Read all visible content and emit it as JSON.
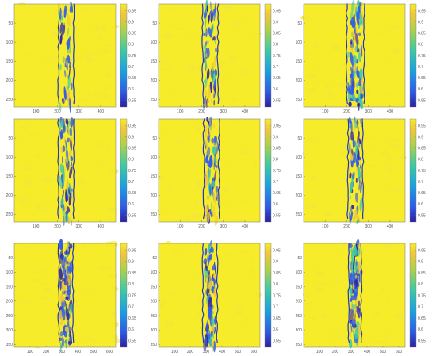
{
  "colors": {
    "field": "#f6ec2a",
    "field_alt": "#f1e73a",
    "band_hot": "#f0c63c",
    "band_mid": "#3fc9a4",
    "band_low": "#2e5ce8",
    "band_deep": "#2b1fa0",
    "edge": "#2037c4",
    "axis": "#777777"
  },
  "colorbar": {
    "ticks": [
      "0.95",
      "0.9",
      "0.85",
      "0.8",
      "0.75",
      "0.7",
      "0.65",
      "0.6",
      "0.55"
    ],
    "values": [
      0.95,
      0.9,
      0.85,
      0.8,
      0.75,
      0.7,
      0.65,
      0.6,
      0.55
    ],
    "range": [
      0.52,
      0.98
    ]
  },
  "chart_data": [
    {
      "type": "heatmap",
      "panel": "r1c1",
      "xlim": [
        0,
        470
      ],
      "ylim": [
        0,
        270
      ],
      "xticks": [
        "100",
        "200",
        "300",
        "400"
      ],
      "xtick_values": [
        100,
        200,
        300,
        400
      ],
      "yticks": [
        "50",
        "100",
        "150",
        "200",
        "250"
      ],
      "ytick_values": [
        50,
        100,
        150,
        200,
        250
      ],
      "band": [
        205,
        275
      ],
      "noise": 0.25
    },
    {
      "type": "heatmap",
      "panel": "r1c2",
      "xlim": [
        0,
        470
      ],
      "ylim": [
        0,
        270
      ],
      "xticks": [
        "100",
        "200",
        "300",
        "400"
      ],
      "xtick_values": [
        100,
        200,
        300,
        400
      ],
      "yticks": [
        "50",
        "100",
        "150",
        "200",
        "250"
      ],
      "ytick_values": [
        50,
        100,
        150,
        200,
        250
      ],
      "band": [
        205,
        275
      ],
      "noise": 0.45
    },
    {
      "type": "heatmap",
      "panel": "r1c3",
      "xlim": [
        0,
        470
      ],
      "ylim": [
        0,
        270
      ],
      "xticks": [
        "100",
        "200",
        "300",
        "400"
      ],
      "xtick_values": [
        100,
        200,
        300,
        400
      ],
      "yticks": [
        "50",
        "100",
        "150",
        "200",
        "250"
      ],
      "ytick_values": [
        50,
        100,
        150,
        200,
        250
      ],
      "band": [
        200,
        280
      ],
      "noise": 0.75
    },
    {
      "type": "heatmap",
      "panel": "r2c1",
      "xlim": [
        0,
        470
      ],
      "ylim": [
        0,
        270
      ],
      "xticks": [
        "100",
        "200",
        "300",
        "400"
      ],
      "xtick_values": [
        100,
        200,
        300,
        400
      ],
      "yticks": [
        "50",
        "100",
        "150",
        "200",
        "250"
      ],
      "ytick_values": [
        50,
        100,
        150,
        200,
        250
      ],
      "band": [
        205,
        275
      ],
      "noise": 0.5
    },
    {
      "type": "heatmap",
      "panel": "r2c2",
      "xlim": [
        0,
        470
      ],
      "ylim": [
        0,
        270
      ],
      "xticks": [
        "100",
        "200",
        "300",
        "400"
      ],
      "xtick_values": [
        100,
        200,
        300,
        400
      ],
      "yticks": [
        "50",
        "100",
        "150",
        "200",
        "250"
      ],
      "ytick_values": [
        50,
        100,
        150,
        200,
        250
      ],
      "band": [
        210,
        280
      ],
      "noise": 0.55
    },
    {
      "type": "heatmap",
      "panel": "r2c3",
      "xlim": [
        0,
        470
      ],
      "ylim": [
        0,
        270
      ],
      "xticks": [
        "100",
        "200",
        "300",
        "400"
      ],
      "xtick_values": [
        100,
        200,
        300,
        400
      ],
      "yticks": [
        "50",
        "100",
        "150",
        "200",
        "250"
      ],
      "ytick_values": [
        50,
        100,
        150,
        200,
        250
      ],
      "band": [
        205,
        275
      ],
      "noise": 0.4
    },
    {
      "type": "heatmap",
      "panel": "r3c1",
      "xlim": [
        0,
        640
      ],
      "ylim": [
        0,
        360
      ],
      "xticks": [
        "100",
        "200",
        "300",
        "400",
        "500",
        "600"
      ],
      "xtick_values": [
        100,
        200,
        300,
        400,
        500,
        600
      ],
      "yticks": [
        "50",
        "100",
        "150",
        "200",
        "250",
        "300",
        "350"
      ],
      "ytick_values": [
        50,
        100,
        150,
        200,
        250,
        300,
        350
      ],
      "band": [
        280,
        370
      ],
      "noise": 0.85
    },
    {
      "type": "heatmap",
      "panel": "r3c2",
      "xlim": [
        0,
        640
      ],
      "ylim": [
        0,
        360
      ],
      "xticks": [
        "100",
        "200",
        "300",
        "400",
        "500",
        "600"
      ],
      "xtick_values": [
        100,
        200,
        300,
        400,
        500,
        600
      ],
      "yticks": [
        "50",
        "100",
        "150",
        "200",
        "250",
        "300",
        "350"
      ],
      "ytick_values": [
        50,
        100,
        150,
        200,
        250,
        300,
        350
      ],
      "band": [
        280,
        370
      ],
      "noise": 0.7
    },
    {
      "type": "heatmap",
      "panel": "r3c3",
      "xlim": [
        0,
        640
      ],
      "ylim": [
        0,
        360
      ],
      "xticks": [
        "100",
        "200",
        "300",
        "400",
        "500",
        "600"
      ],
      "xtick_values": [
        100,
        200,
        300,
        400,
        500,
        600
      ],
      "yticks": [
        "50",
        "100",
        "150",
        "200",
        "250",
        "300",
        "350"
      ],
      "ytick_values": [
        50,
        100,
        150,
        200,
        250,
        300,
        350
      ],
      "band": [
        285,
        365
      ],
      "noise": 0.75
    }
  ]
}
